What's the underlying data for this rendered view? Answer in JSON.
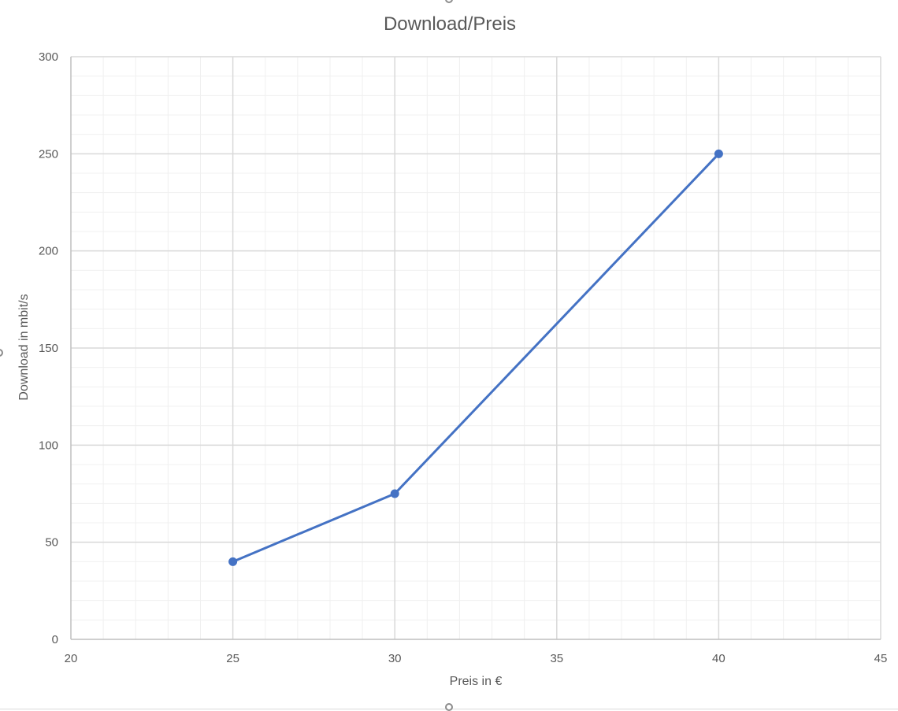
{
  "chart_data": {
    "type": "scatter",
    "title": "Download/Preis",
    "xlabel": "Preis in €",
    "ylabel": "Download in mbit/s",
    "xlim": [
      20,
      45
    ],
    "ylim": [
      0,
      300
    ],
    "x_ticks": [
      20,
      25,
      30,
      35,
      40,
      45
    ],
    "y_ticks": [
      0,
      50,
      100,
      150,
      200,
      250,
      300
    ],
    "x_minor_step": 1,
    "y_minor_step": 10,
    "grid": true,
    "legend": "none",
    "series": [
      {
        "points": [
          {
            "x": 25,
            "y": 40
          },
          {
            "x": 30,
            "y": 75
          },
          {
            "x": 40,
            "y": 250
          }
        ],
        "color": "#4472c4",
        "markers": true,
        "lines": true
      }
    ]
  }
}
